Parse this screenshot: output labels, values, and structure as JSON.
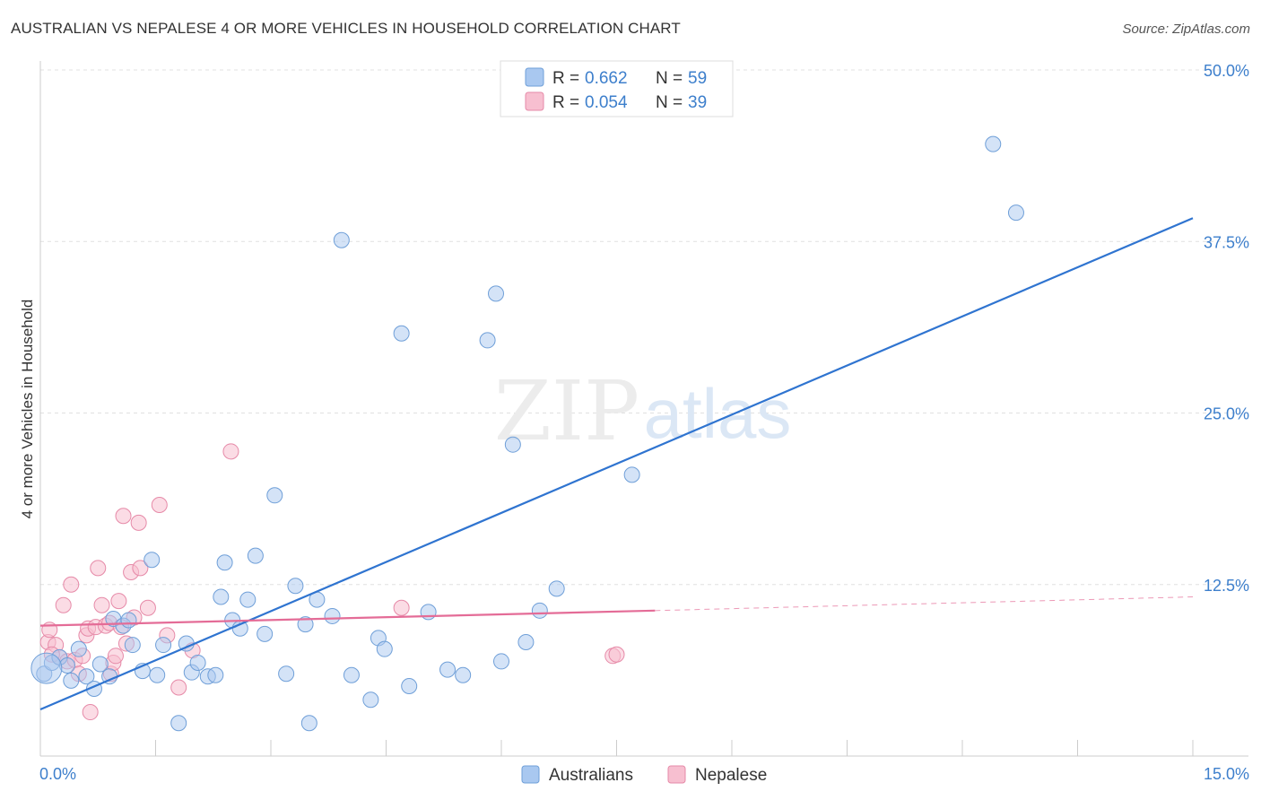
{
  "header": {
    "title": "AUSTRALIAN VS NEPALESE 4 OR MORE VEHICLES IN HOUSEHOLD CORRELATION CHART",
    "source": "Source: ZipAtlas.com"
  },
  "watermark": {
    "part1": "ZIP",
    "part2": "atlas"
  },
  "legend_top": [
    {
      "r_label": "R =",
      "r_value": "0.662",
      "n_label": "N =",
      "n_value": "59",
      "color": "#a9c8f0",
      "border": "#6f9fd8"
    },
    {
      "r_label": "R =",
      "r_value": "0.054",
      "n_label": "N =",
      "n_value": "39",
      "color": "#f7bfd0",
      "border": "#e68aa8"
    }
  ],
  "colors": {
    "blue": "#2f74d0",
    "blue_fill": "#a9c8f0",
    "pink": "#e46c97",
    "pink_fill": "#f7bfd0",
    "tick_text": "#3d7fcc",
    "grid": "#e0e0e0"
  },
  "chart_data": {
    "type": "scatter",
    "title": "AUSTRALIAN VS NEPALESE 4 OR MORE VEHICLES IN HOUSEHOLD CORRELATION CHART",
    "xlabel": "",
    "ylabel": "4 or more Vehicles in Household",
    "xlim": [
      0,
      15
    ],
    "ylim": [
      0,
      50
    ],
    "x_tick_labels": [
      "0.0%",
      "15.0%"
    ],
    "y_ticks": [
      12.5,
      25.0,
      37.5,
      50.0
    ],
    "y_tick_labels": [
      "12.5%",
      "25.0%",
      "37.5%",
      "50.0%"
    ],
    "legend": [
      "Australians",
      "Nepalese"
    ],
    "series": [
      {
        "name": "Australians",
        "r": 0.662,
        "n": 59,
        "trend": {
          "x": [
            0,
            15
          ],
          "y": [
            3.4,
            39.2
          ]
        },
        "points": [
          [
            0.05,
            6.0
          ],
          [
            0.15,
            6.8
          ],
          [
            0.25,
            7.2
          ],
          [
            0.35,
            6.6
          ],
          [
            0.4,
            5.5
          ],
          [
            0.5,
            7.8
          ],
          [
            0.6,
            5.8
          ],
          [
            0.7,
            4.9
          ],
          [
            0.78,
            6.7
          ],
          [
            0.9,
            5.8
          ],
          [
            0.95,
            10.0
          ],
          [
            1.08,
            9.5
          ],
          [
            1.15,
            9.9
          ],
          [
            1.2,
            8.1
          ],
          [
            1.33,
            6.2
          ],
          [
            1.45,
            14.3
          ],
          [
            1.52,
            5.9
          ],
          [
            1.6,
            8.1
          ],
          [
            1.8,
            2.4
          ],
          [
            1.9,
            8.2
          ],
          [
            1.97,
            6.1
          ],
          [
            2.05,
            6.8
          ],
          [
            2.18,
            5.8
          ],
          [
            2.28,
            5.9
          ],
          [
            2.35,
            11.6
          ],
          [
            2.4,
            14.1
          ],
          [
            2.5,
            9.9
          ],
          [
            2.6,
            9.3
          ],
          [
            2.7,
            11.4
          ],
          [
            2.8,
            14.6
          ],
          [
            2.92,
            8.9
          ],
          [
            3.05,
            19.0
          ],
          [
            3.2,
            6.0
          ],
          [
            3.32,
            12.4
          ],
          [
            3.45,
            9.6
          ],
          [
            3.5,
            2.4
          ],
          [
            3.6,
            11.4
          ],
          [
            3.8,
            10.2
          ],
          [
            3.92,
            37.6
          ],
          [
            4.05,
            5.9
          ],
          [
            4.3,
            4.1
          ],
          [
            4.4,
            8.6
          ],
          [
            4.48,
            7.8
          ],
          [
            4.7,
            30.8
          ],
          [
            4.8,
            5.1
          ],
          [
            5.05,
            10.5
          ],
          [
            5.3,
            6.3
          ],
          [
            5.5,
            5.9
          ],
          [
            5.82,
            30.3
          ],
          [
            5.93,
            33.7
          ],
          [
            6.0,
            6.9
          ],
          [
            6.15,
            22.7
          ],
          [
            6.32,
            8.3
          ],
          [
            6.5,
            10.6
          ],
          [
            6.72,
            12.2
          ],
          [
            7.7,
            20.5
          ],
          [
            12.4,
            44.6
          ],
          [
            12.7,
            39.6
          ],
          [
            0.08,
            6.4
          ]
        ]
      },
      {
        "name": "Nepalese",
        "r": 0.054,
        "n": 39,
        "trend": {
          "x": [
            0,
            8.0
          ],
          "y": [
            9.5,
            10.6
          ]
        },
        "trend_dashed": {
          "x": [
            8.0,
            15.0
          ],
          "y": [
            10.6,
            11.6
          ]
        },
        "points": [
          [
            0.1,
            8.3
          ],
          [
            0.12,
            9.2
          ],
          [
            0.2,
            8.1
          ],
          [
            0.25,
            7.2
          ],
          [
            0.3,
            11.0
          ],
          [
            0.35,
            6.9
          ],
          [
            0.4,
            12.5
          ],
          [
            0.45,
            7.0
          ],
          [
            0.5,
            6.0
          ],
          [
            0.55,
            7.3
          ],
          [
            0.6,
            8.8
          ],
          [
            0.62,
            9.3
          ],
          [
            0.65,
            3.2
          ],
          [
            0.72,
            9.4
          ],
          [
            0.75,
            13.7
          ],
          [
            0.8,
            11.0
          ],
          [
            0.85,
            9.5
          ],
          [
            0.9,
            9.7
          ],
          [
            0.92,
            6.0
          ],
          [
            0.95,
            6.8
          ],
          [
            0.98,
            7.3
          ],
          [
            1.02,
            11.3
          ],
          [
            1.05,
            9.4
          ],
          [
            1.08,
            17.5
          ],
          [
            1.12,
            8.2
          ],
          [
            1.18,
            13.4
          ],
          [
            1.22,
            10.1
          ],
          [
            1.28,
            17.0
          ],
          [
            1.3,
            13.7
          ],
          [
            1.4,
            10.8
          ],
          [
            1.55,
            18.3
          ],
          [
            1.65,
            8.8
          ],
          [
            1.8,
            5.0
          ],
          [
            1.98,
            7.7
          ],
          [
            2.48,
            22.2
          ],
          [
            4.7,
            10.8
          ],
          [
            7.45,
            7.3
          ],
          [
            7.5,
            7.4
          ],
          [
            0.15,
            7.4
          ]
        ]
      }
    ]
  },
  "legend_bottom": {
    "items": [
      "Australians",
      "Nepalese"
    ]
  }
}
